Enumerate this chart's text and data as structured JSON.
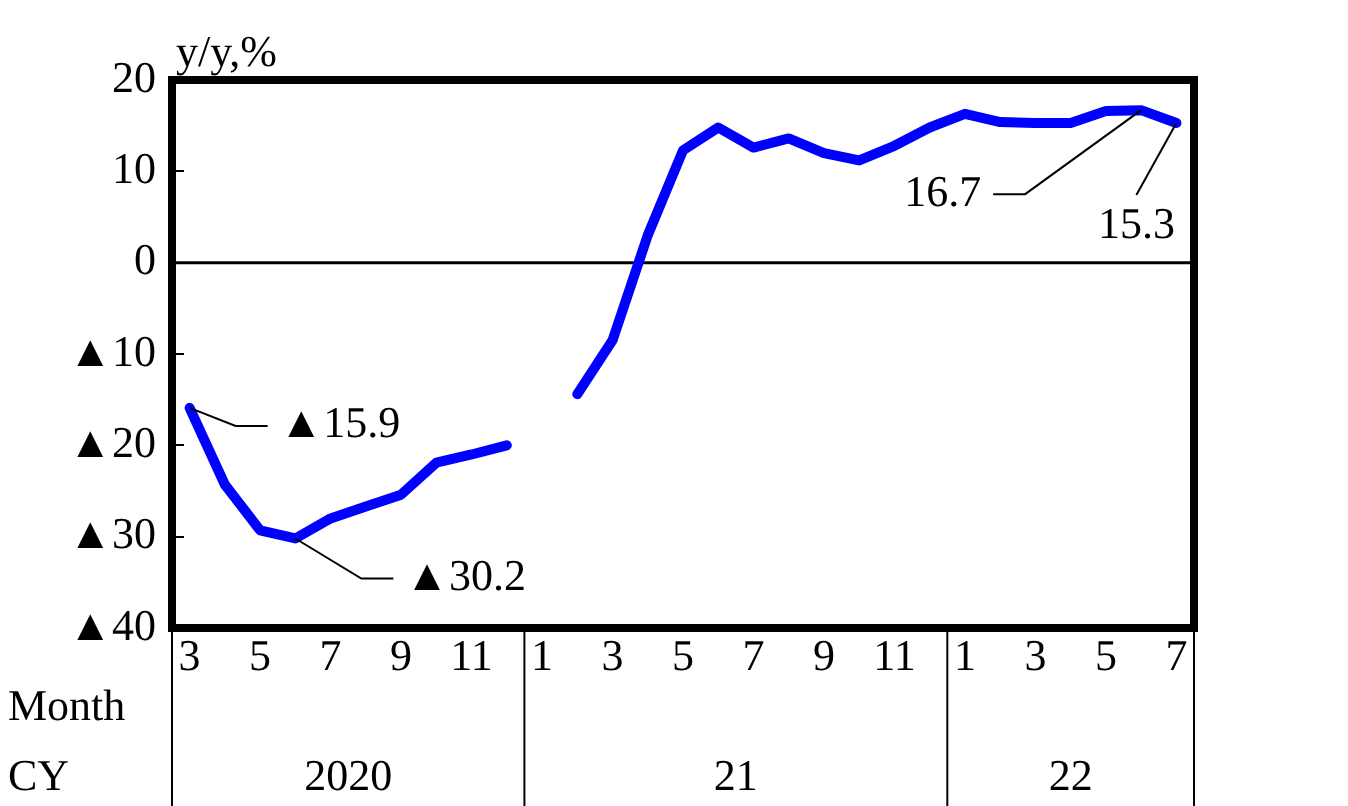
{
  "chart_data": {
    "type": "line",
    "ylabel": "y/y,%",
    "xlabel": "Month",
    "x": [
      "2020-03",
      "2020-04",
      "2020-05",
      "2020-06",
      "2020-07",
      "2020-08",
      "2020-09",
      "2020-10",
      "2020-11",
      "2020-12",
      "2021-01",
      "2021-02",
      "2021-03",
      "2021-04",
      "2021-05",
      "2021-06",
      "2021-07",
      "2021-08",
      "2021-09",
      "2021-10",
      "2021-11",
      "2021-12",
      "2022-01",
      "2022-02",
      "2022-03",
      "2022-04",
      "2022-05",
      "2022-06",
      "2022-07"
    ],
    "series": [
      {
        "color": "#0000ff",
        "values": [
          -15.9,
          -24.3,
          -29.3,
          -30.2,
          -28.0,
          -26.7,
          -25.4,
          -21.9,
          -21.0,
          -20.0,
          null,
          -14.4,
          -8.5,
          3.0,
          12.3,
          14.8,
          12.6,
          13.6,
          12.0,
          11.2,
          12.8,
          14.8,
          16.3,
          15.4,
          15.3,
          15.3,
          16.6,
          16.7,
          15.3
        ]
      }
    ],
    "xlim": [
      "2020-02-16",
      "2022-07-16"
    ],
    "xticks": [
      {
        "value": "2020-03",
        "label": "3"
      },
      {
        "value": "2020-05",
        "label": "5"
      },
      {
        "value": "2020-07",
        "label": "7"
      },
      {
        "value": "2020-09",
        "label": "9"
      },
      {
        "value": "2020-11",
        "label": "11"
      },
      {
        "value": "2021-01",
        "label": "1"
      },
      {
        "value": "2021-03",
        "label": "3"
      },
      {
        "value": "2021-05",
        "label": "5"
      },
      {
        "value": "2021-07",
        "label": "7"
      },
      {
        "value": "2021-09",
        "label": "9"
      },
      {
        "value": "2021-11",
        "label": "11"
      },
      {
        "value": "2022-01",
        "label": "1"
      },
      {
        "value": "2022-03",
        "label": "3"
      },
      {
        "value": "2022-05",
        "label": "5"
      },
      {
        "value": "2022-07",
        "label": "7"
      }
    ],
    "ylim": [
      -40,
      20
    ],
    "yticks": [
      20,
      10,
      0,
      {
        "value": -10,
        "label": "▲10"
      },
      {
        "value": -20,
        "label": "▲20"
      },
      {
        "value": -30,
        "label": "▲30"
      },
      {
        "value": -40,
        "label": "▲40"
      }
    ],
    "ref_lines": [
      {
        "axis": "y",
        "value": 0,
        "color": "#000000"
      }
    ],
    "annotations": [
      "CY",
      "2020",
      "21",
      "22",
      {
        "text": "▲15.9",
        "x": "2020-03",
        "y": -15.9
      },
      {
        "text": "▲30.2",
        "x": "2020-06",
        "y": -30.2
      },
      {
        "text": "16.7",
        "x": "2022-06",
        "y": 16.7
      },
      {
        "text": "15.3",
        "x": "2022-07",
        "y": 15.3
      }
    ],
    "grid": false,
    "legend": false,
    "marker": "none",
    "line_style": "solid"
  }
}
